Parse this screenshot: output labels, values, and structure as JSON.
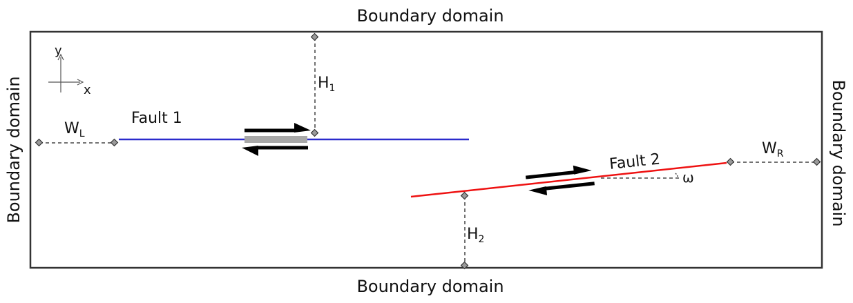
{
  "labels": {
    "boundary_top": "Boundary domain",
    "boundary_bottom": "Boundary domain",
    "boundary_left": "Boundary domain",
    "boundary_right": "Boundary domain",
    "fault1": "Fault 1",
    "fault2": "Fault 2",
    "axis_x": "x",
    "axis_y": "y",
    "omega": "ω",
    "WL": {
      "main": "W",
      "sub": "L"
    },
    "WR": {
      "main": "W",
      "sub": "R"
    },
    "H1": {
      "main": "H",
      "sub": "1"
    },
    "H2": {
      "main": "H",
      "sub": "2"
    }
  },
  "colors": {
    "frame": "#333333",
    "fault1": "#2a2acc",
    "fault2": "#ee1111",
    "dimension": "#444444",
    "slip_arrow": "#000000",
    "fault1_patch": "#a8a8a8"
  }
}
